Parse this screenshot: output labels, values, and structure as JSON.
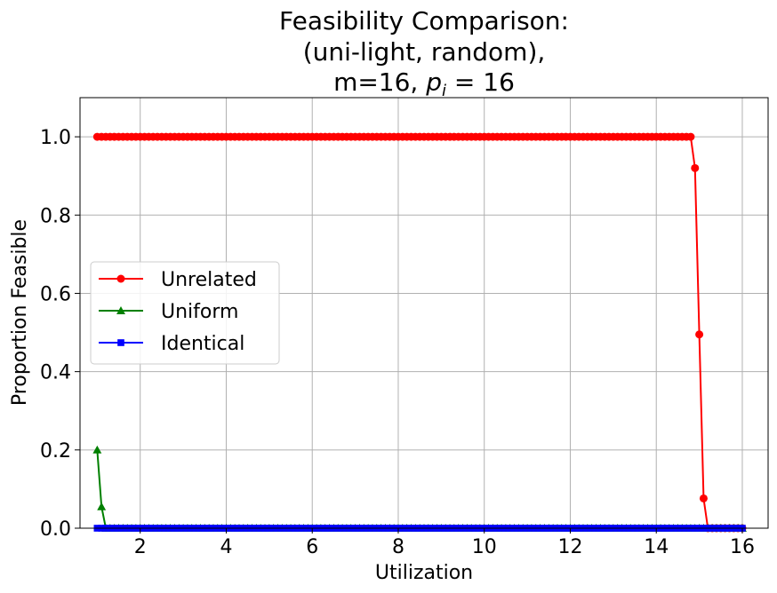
{
  "chart_data": {
    "type": "line",
    "title_lines": [
      "Feasibility Comparison:",
      "(uni-light, random),"
    ],
    "title_line3_prefix": "m=16, ",
    "title_line3_italic": "p",
    "title_line3_sub": "i",
    "title_line3_suffix": " = 16",
    "xlabel": "Utilization",
    "ylabel": "Proportion Feasible",
    "xlim": [
      0.6,
      16.6
    ],
    "ylim": [
      0.0,
      1.1
    ],
    "xticks": [
      2,
      4,
      6,
      8,
      10,
      12,
      14,
      16
    ],
    "xtick_labels": [
      "2",
      "4",
      "6",
      "8",
      "10",
      "12",
      "14",
      "16"
    ],
    "yticks": [
      0.0,
      0.2,
      0.4,
      0.6,
      0.8,
      1.0
    ],
    "ytick_labels": [
      "0.0",
      "0.2",
      "0.4",
      "0.6",
      "0.8",
      "1.0"
    ],
    "grid": true,
    "legend_position": "center-left",
    "x_start": 1.0,
    "x_end": 16.0,
    "x_step": 0.1,
    "series": [
      {
        "name": "Unrelated",
        "color": "#ff0000",
        "marker": "circle",
        "values_note": "1.0 for x<=14.8, then drops",
        "points": [
          [
            14.9,
            0.92
          ],
          [
            15.0,
            0.495
          ],
          [
            15.1,
            0.076
          ],
          [
            15.2,
            0.0
          ]
        ],
        "base_value": 1.0,
        "base_until": 14.8,
        "tail_value": 0.0
      },
      {
        "name": "Uniform",
        "color": "#008000",
        "marker": "triangle",
        "points": [
          [
            1.0,
            0.2
          ],
          [
            1.1,
            0.055
          ],
          [
            1.2,
            0.0
          ]
        ],
        "tail_value": 0.0
      },
      {
        "name": "Identical",
        "color": "#0000ff",
        "marker": "square",
        "base_value": 0.0
      }
    ]
  }
}
